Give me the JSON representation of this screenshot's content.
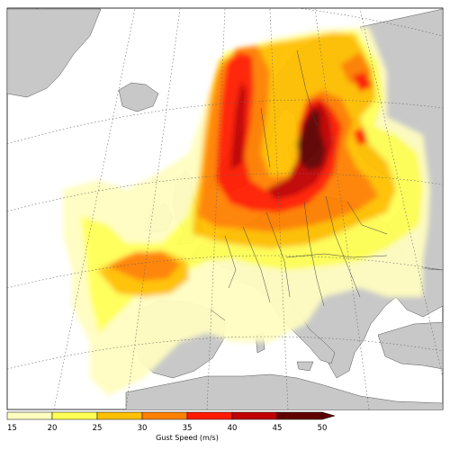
{
  "map": {
    "type": "wind-gust-map",
    "region": "Europe",
    "sea_color": "#ffffff",
    "land_color": "#c8c8c8"
  },
  "colorbar": {
    "title": "Gust Speed (m/s)",
    "ticks": [
      "15",
      "20",
      "25",
      "30",
      "35",
      "40",
      "45",
      "50"
    ],
    "bins": [
      {
        "from": 15,
        "to": 20,
        "color": "#fffdc0"
      },
      {
        "from": 20,
        "to": 25,
        "color": "#ffff55"
      },
      {
        "from": 25,
        "to": 30,
        "color": "#ffc000"
      },
      {
        "from": 30,
        "to": 35,
        "color": "#ff8000"
      },
      {
        "from": 35,
        "to": 40,
        "color": "#ff1a00"
      },
      {
        "from": 40,
        "to": 45,
        "color": "#c00000"
      },
      {
        "from": 45,
        "to": 50,
        "color": "#600000"
      }
    ],
    "extend": "max"
  }
}
